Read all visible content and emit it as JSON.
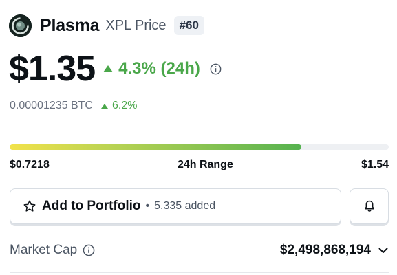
{
  "coin": {
    "name": "Plasma",
    "subtitle": "XPL Price",
    "rank": "#60",
    "logo_icon": "plasma-logo-icon"
  },
  "price": {
    "value": "$1.35",
    "change_24h": "4.3% (24h)",
    "change_direction": "up",
    "info_icon": "info-icon"
  },
  "btc": {
    "value": "0.00001235 BTC",
    "change": "6.2%",
    "change_direction": "up"
  },
  "range": {
    "low": "$0.7218",
    "label": "24h Range",
    "high": "$1.54",
    "position_fraction": 0.77
  },
  "actions": {
    "portfolio_label": "Add to Portfolio",
    "portfolio_separator": "•",
    "portfolio_count": "5,335 added",
    "portfolio_icon": "star-icon",
    "alert_icon": "bell-icon"
  },
  "market_cap": {
    "label": "Market Cap",
    "value": "$2,498,868,194",
    "info_icon": "info-icon",
    "expand_icon": "chevron-down-icon"
  },
  "colors": {
    "up_green": "#4aa74a",
    "text_primary": "#0d1217",
    "text_secondary": "#4b5563",
    "range_start": "#f2e24a",
    "range_end": "#55b24f"
  }
}
